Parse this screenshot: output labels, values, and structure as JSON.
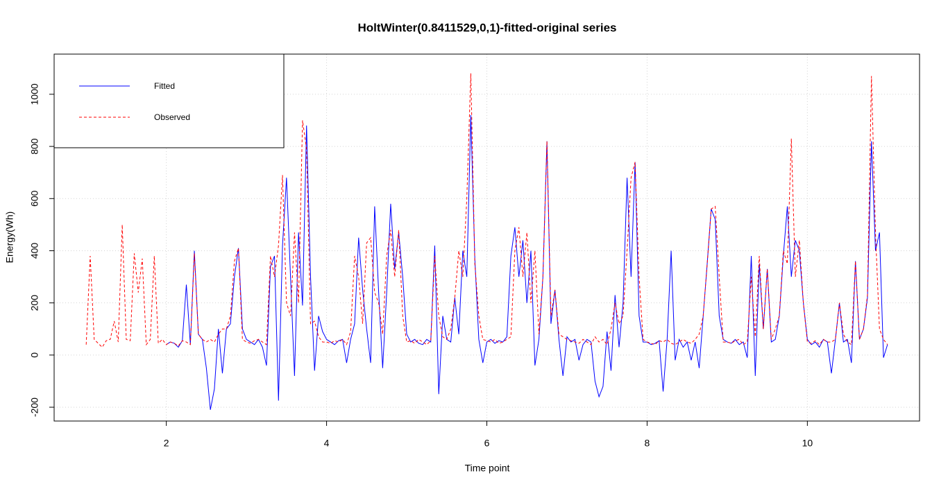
{
  "chart_data": {
    "type": "line",
    "title": "HoltWinter(0.8411529,0,1)-fitted-original series",
    "x_label": "Time point",
    "y_label": "Energy(Wh)",
    "xlim": [
      0.6,
      11.4
    ],
    "xticks": [
      2,
      4,
      6,
      8,
      10
    ],
    "ylim": [
      -253,
      1154
    ],
    "yticks": [
      -200,
      0,
      200,
      400,
      600,
      800,
      1000
    ],
    "grid": true,
    "legend_position": "top-left",
    "series": [
      {
        "name": "Fitted",
        "color": "#0000ff",
        "linestyle": "solid",
        "x": [
          2.0,
          2.05,
          2.1,
          2.15,
          2.2,
          2.25,
          2.3,
          2.35,
          2.4,
          2.45,
          2.5,
          2.55,
          2.6,
          2.65,
          2.7,
          2.75,
          2.8,
          2.85,
          2.9,
          2.95,
          3.0,
          3.05,
          3.1,
          3.15,
          3.2,
          3.25,
          3.3,
          3.35,
          3.4,
          3.45,
          3.5,
          3.55,
          3.6,
          3.65,
          3.7,
          3.75,
          3.8,
          3.85,
          3.9,
          3.95,
          4.0,
          4.05,
          4.1,
          4.15,
          4.2,
          4.25,
          4.3,
          4.35,
          4.4,
          4.45,
          4.5,
          4.55,
          4.6,
          4.65,
          4.7,
          4.75,
          4.8,
          4.85,
          4.9,
          4.95,
          5.0,
          5.05,
          5.1,
          5.15,
          5.2,
          5.25,
          5.3,
          5.35,
          5.4,
          5.45,
          5.5,
          5.55,
          5.6,
          5.65,
          5.7,
          5.75,
          5.8,
          5.85,
          5.9,
          5.95,
          6.0,
          6.05,
          6.1,
          6.15,
          6.2,
          6.25,
          6.3,
          6.35,
          6.4,
          6.45,
          6.5,
          6.55,
          6.6,
          6.65,
          6.7,
          6.75,
          6.8,
          6.85,
          6.9,
          6.95,
          7.0,
          7.05,
          7.1,
          7.15,
          7.2,
          7.25,
          7.3,
          7.35,
          7.4,
          7.45,
          7.5,
          7.55,
          7.6,
          7.65,
          7.7,
          7.75,
          7.8,
          7.85,
          7.9,
          7.95,
          8.0,
          8.05,
          8.1,
          8.15,
          8.2,
          8.25,
          8.3,
          8.35,
          8.4,
          8.45,
          8.5,
          8.55,
          8.6,
          8.65,
          8.7,
          8.75,
          8.8,
          8.85,
          8.9,
          8.95,
          9.0,
          9.05,
          9.1,
          9.15,
          9.2,
          9.25,
          9.3,
          9.35,
          9.4,
          9.45,
          9.5,
          9.55,
          9.6,
          9.65,
          9.7,
          9.75,
          9.8,
          9.85,
          9.9,
          9.95,
          10.0,
          10.05,
          10.1,
          10.15,
          10.2,
          10.25,
          10.3,
          10.35,
          10.4,
          10.45,
          10.5,
          10.55,
          10.6,
          10.65,
          10.7,
          10.75,
          10.8,
          10.85,
          10.9,
          10.95,
          11.0
        ],
        "values": [
          40,
          50,
          45,
          30,
          55,
          270,
          40,
          400,
          80,
          60,
          -50,
          -210,
          -130,
          100,
          -70,
          100,
          120,
          300,
          410,
          100,
          60,
          50,
          40,
          60,
          30,
          -40,
          340,
          380,
          -175,
          420,
          680,
          300,
          -80,
          470,
          190,
          880,
          300,
          -60,
          150,
          90,
          60,
          50,
          40,
          55,
          60,
          -30,
          60,
          120,
          450,
          250,
          100,
          -30,
          570,
          240,
          -50,
          240,
          580,
          330,
          470,
          300,
          80,
          50,
          60,
          45,
          40,
          60,
          50,
          420,
          -150,
          150,
          60,
          50,
          220,
          80,
          400,
          300,
          920,
          370,
          60,
          -30,
          50,
          60,
          45,
          55,
          50,
          70,
          380,
          490,
          300,
          440,
          200,
          400,
          -40,
          60,
          300,
          820,
          120,
          250,
          60,
          -80,
          70,
          50,
          60,
          -20,
          40,
          60,
          50,
          -100,
          -160,
          -120,
          90,
          -60,
          230,
          30,
          200,
          680,
          300,
          740,
          150,
          50,
          50,
          40,
          45,
          55,
          -140,
          60,
          400,
          -20,
          60,
          30,
          50,
          -20,
          50,
          -50,
          150,
          350,
          560,
          520,
          150,
          60,
          50,
          45,
          60,
          40,
          50,
          -10,
          380,
          -80,
          350,
          100,
          330,
          50,
          60,
          150,
          380,
          570,
          300,
          440,
          400,
          200,
          60,
          40,
          50,
          30,
          60,
          50,
          -70,
          60,
          200,
          50,
          60,
          -30,
          360,
          60,
          100,
          220,
          820,
          400,
          470,
          -10,
          40
        ]
      },
      {
        "name": "Observed",
        "color": "#ff0000",
        "linestyle": "dashed",
        "x": [
          1.0,
          1.05,
          1.1,
          1.15,
          1.2,
          1.25,
          1.3,
          1.35,
          1.4,
          1.45,
          1.5,
          1.55,
          1.6,
          1.65,
          1.7,
          1.75,
          1.8,
          1.85,
          1.9,
          1.95,
          2.0,
          2.05,
          2.1,
          2.15,
          2.2,
          2.25,
          2.3,
          2.35,
          2.4,
          2.45,
          2.5,
          2.55,
          2.6,
          2.65,
          2.7,
          2.75,
          2.8,
          2.85,
          2.9,
          2.95,
          3.0,
          3.05,
          3.1,
          3.15,
          3.2,
          3.25,
          3.3,
          3.35,
          3.4,
          3.45,
          3.5,
          3.55,
          3.6,
          3.65,
          3.7,
          3.75,
          3.8,
          3.85,
          3.9,
          3.95,
          4.0,
          4.05,
          4.1,
          4.15,
          4.2,
          4.25,
          4.3,
          4.35,
          4.4,
          4.45,
          4.5,
          4.55,
          4.6,
          4.65,
          4.7,
          4.75,
          4.8,
          4.85,
          4.9,
          4.95,
          5.0,
          5.05,
          5.1,
          5.15,
          5.2,
          5.25,
          5.3,
          5.35,
          5.4,
          5.45,
          5.5,
          5.55,
          5.6,
          5.65,
          5.7,
          5.75,
          5.8,
          5.85,
          5.9,
          5.95,
          6.0,
          6.05,
          6.1,
          6.15,
          6.2,
          6.25,
          6.3,
          6.35,
          6.4,
          6.45,
          6.5,
          6.55,
          6.6,
          6.65,
          6.7,
          6.75,
          6.8,
          6.85,
          6.9,
          6.95,
          7.0,
          7.05,
          7.1,
          7.15,
          7.2,
          7.25,
          7.3,
          7.35,
          7.4,
          7.45,
          7.5,
          7.55,
          7.6,
          7.65,
          7.7,
          7.75,
          7.8,
          7.85,
          7.9,
          7.95,
          8.0,
          8.05,
          8.1,
          8.15,
          8.2,
          8.25,
          8.3,
          8.35,
          8.4,
          8.45,
          8.5,
          8.55,
          8.6,
          8.65,
          8.7,
          8.75,
          8.8,
          8.85,
          8.9,
          8.95,
          9.0,
          9.05,
          9.1,
          9.15,
          9.2,
          9.25,
          9.3,
          9.35,
          9.4,
          9.45,
          9.5,
          9.55,
          9.6,
          9.65,
          9.7,
          9.75,
          9.8,
          9.85,
          9.9,
          9.95,
          10.0,
          10.05,
          10.1,
          10.15,
          10.2,
          10.25,
          10.3,
          10.35,
          10.4,
          10.45,
          10.5,
          10.55,
          10.6,
          10.65,
          10.7,
          10.75,
          10.8,
          10.85,
          10.9,
          10.95,
          11.0
        ],
        "values": [
          40,
          380,
          60,
          45,
          30,
          55,
          60,
          130,
          50,
          500,
          60,
          55,
          390,
          240,
          370,
          40,
          60,
          380,
          45,
          60,
          40,
          50,
          45,
          35,
          55,
          50,
          40,
          390,
          80,
          60,
          50,
          60,
          50,
          80,
          100,
          100,
          150,
          360,
          410,
          60,
          50,
          45,
          55,
          60,
          50,
          40,
          380,
          300,
          420,
          690,
          200,
          150,
          470,
          200,
          900,
          790,
          120,
          130,
          70,
          50,
          50,
          45,
          55,
          50,
          60,
          40,
          90,
          380,
          300,
          120,
          430,
          450,
          240,
          200,
          80,
          380,
          480,
          300,
          480,
          150,
          50,
          55,
          45,
          60,
          50,
          40,
          55,
          380,
          150,
          70,
          60,
          100,
          220,
          400,
          300,
          600,
          1080,
          350,
          150,
          60,
          55,
          50,
          60,
          45,
          50,
          60,
          70,
          400,
          490,
          300,
          470,
          200,
          400,
          80,
          300,
          820,
          150,
          250,
          80,
          70,
          60,
          55,
          50,
          45,
          60,
          50,
          40,
          70,
          50,
          60,
          40,
          100,
          200,
          120,
          150,
          400,
          680,
          740,
          300,
          60,
          50,
          45,
          40,
          55,
          50,
          60,
          45,
          40,
          50,
          60,
          50,
          45,
          60,
          80,
          150,
          350,
          560,
          570,
          300,
          50,
          50,
          45,
          55,
          60,
          40,
          50,
          300,
          70,
          380,
          100,
          330,
          60,
          100,
          150,
          400,
          350,
          830,
          300,
          440,
          200,
          50,
          45,
          55,
          40,
          60,
          50,
          50,
          60,
          200,
          80,
          50,
          40,
          360,
          60,
          100,
          230,
          1070,
          470,
          100,
          60,
          40
        ]
      }
    ]
  }
}
